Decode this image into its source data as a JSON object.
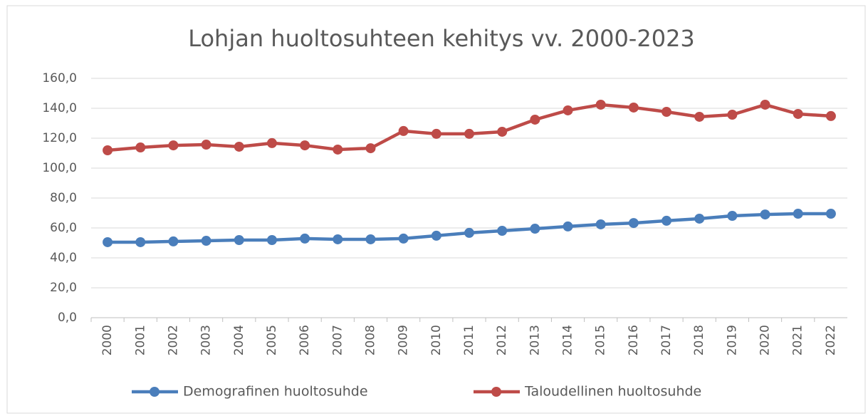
{
  "chart_data": {
    "type": "line",
    "title": "Lohjan huoltosuhteen kehitys vv. 2000-2023",
    "categories": [
      "2000",
      "2001",
      "2002",
      "2003",
      "2004",
      "2005",
      "2006",
      "2007",
      "2008",
      "2009",
      "2010",
      "2011",
      "2012",
      "2013",
      "2014",
      "2015",
      "2016",
      "2017",
      "2018",
      "2019",
      "2020",
      "2021",
      "2022"
    ],
    "series": [
      {
        "name": "Demografinen huoltosuhde",
        "color": "#4a7ebb",
        "values": [
          50.5,
          50.5,
          51.0,
          51.4,
          51.9,
          51.9,
          52.9,
          52.4,
          52.4,
          52.9,
          54.8,
          56.7,
          58.1,
          59.5,
          61.0,
          62.4,
          63.3,
          64.8,
          66.2,
          68.1,
          69.0,
          69.5,
          69.5
        ]
      },
      {
        "name": "Taloudellinen huoltosuhde",
        "color": "#be4b48",
        "values": [
          111.9,
          113.8,
          115.2,
          115.7,
          114.3,
          116.7,
          115.2,
          112.4,
          113.3,
          124.8,
          122.9,
          122.9,
          124.3,
          132.4,
          138.6,
          142.4,
          140.5,
          137.6,
          134.3,
          135.7,
          142.4,
          136.2,
          134.8
        ]
      }
    ],
    "ylim": [
      0,
      160
    ],
    "yticks": [
      {
        "value": 0,
        "label": "0,0"
      },
      {
        "value": 20,
        "label": "20,0"
      },
      {
        "value": 40,
        "label": "40,0"
      },
      {
        "value": 60,
        "label": "60,0"
      },
      {
        "value": 80,
        "label": "80,0"
      },
      {
        "value": 100,
        "label": "100,0"
      },
      {
        "value": 120,
        "label": "120,0"
      },
      {
        "value": 140,
        "label": "140,0"
      },
      {
        "value": 160,
        "label": "160,0"
      }
    ],
    "grid": true,
    "legend": "bottom"
  }
}
